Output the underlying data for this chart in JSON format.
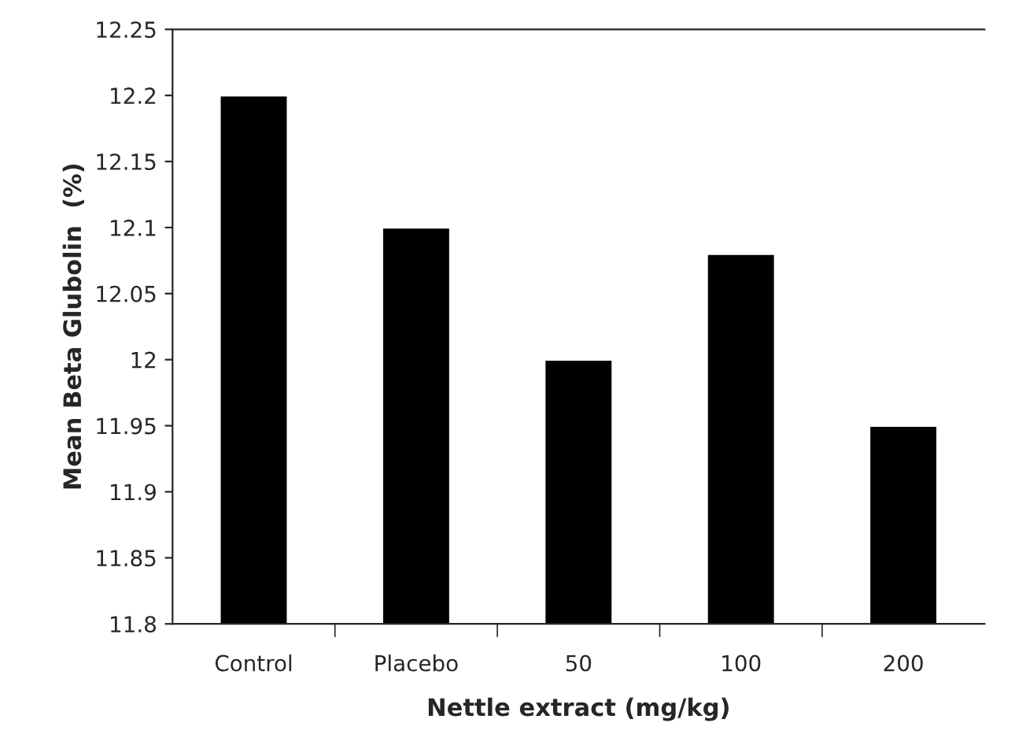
{
  "chart_data": {
    "type": "bar",
    "xlabel": "Nettle extract (mg/kg)",
    "ylabel": "Mean Beta Glubolin  (%)",
    "categories": [
      "Control",
      "Placebo",
      "50",
      "100",
      "200"
    ],
    "values": [
      12.2,
      12.1,
      12,
      12.08,
      11.95
    ],
    "color": "#000000",
    "ylim": [
      11.8,
      12.25
    ],
    "yticks": [
      11.8,
      11.85,
      11.9,
      11.95,
      12,
      12.05,
      12.1,
      12.15,
      12.2,
      12.25
    ],
    "grid": false
  }
}
